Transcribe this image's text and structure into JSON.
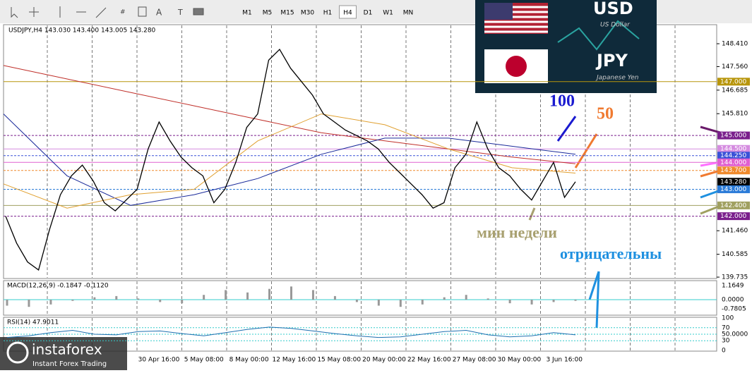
{
  "toolbar": {
    "periods": [
      "M1",
      "M5",
      "M15",
      "M30",
      "H1",
      "H4",
      "D1",
      "W1",
      "MN"
    ],
    "active": "H4"
  },
  "chart": {
    "header": "USDJPY,H4  143.030 143.400 143.005 143.280",
    "price_ticks": [
      "148.410",
      "147.560",
      "146.685",
      "145.810",
      "141.460",
      "140.585",
      "139.735"
    ],
    "levels": [
      {
        "label": "147.000",
        "color": "#b8960c"
      },
      {
        "label": "145.000",
        "color": "#7a1f8c"
      },
      {
        "label": "144.500",
        "color": "#d58ce0"
      },
      {
        "label": "144.250",
        "color": "#3a52d8"
      },
      {
        "label": "144.000",
        "color": "#e060d0"
      },
      {
        "label": "143.700",
        "color": "#f08a2c"
      },
      {
        "label": "143.280",
        "color": "#000000"
      },
      {
        "label": "143.000",
        "color": "#2b7bd8"
      },
      {
        "label": "142.400",
        "color": "#a0a060"
      },
      {
        "label": "142.000",
        "color": "#7a1f8c"
      }
    ],
    "closes": [
      142.0,
      141.0,
      140.3,
      140.0,
      141.5,
      142.8,
      143.5,
      143.9,
      143.3,
      142.5,
      142.2,
      142.6,
      143.0,
      144.5,
      145.5,
      144.8,
      144.2,
      143.8,
      143.5,
      142.5,
      143.0,
      144.0,
      145.3,
      145.8,
      147.8,
      148.2,
      147.5,
      147.0,
      146.5,
      145.8,
      145.5,
      145.2,
      145.0,
      144.8,
      144.5,
      144.0,
      143.6,
      143.2,
      142.8,
      142.3,
      142.5,
      143.8,
      144.3,
      145.5,
      144.5,
      143.8,
      143.5,
      143.0,
      142.6,
      143.3,
      144.0,
      142.7,
      143.28
    ],
    "ma200": [
      147.6,
      147.1,
      146.6,
      146.1,
      145.6,
      145.1,
      144.8,
      144.5,
      144.2,
      143.95
    ],
    "ma100": [
      145.8,
      143.5,
      142.4,
      142.8,
      143.4,
      144.3,
      144.9,
      144.9,
      144.6,
      144.3
    ],
    "ma50": [
      143.2,
      142.3,
      142.8,
      143.0,
      144.8,
      145.8,
      145.4,
      144.5,
      143.8,
      143.6
    ],
    "time_labels": [
      "30 Apr 16:00",
      "5 May 08:00",
      "8 May 00:00",
      "12 May 16:00",
      "15 May 08:00",
      "20 May 00:00",
      "22 May 16:00",
      "27 May 08:00",
      "30 May 00:00",
      "3 Jun 16:00"
    ]
  },
  "macd": {
    "label": "MACD(12,26,9) -0.1847 -0.1120",
    "ticks": [
      "1.1649",
      "0.0000",
      "-0.7805"
    ],
    "histogram": [
      -0.5,
      -0.6,
      -0.4,
      -0.1,
      0.2,
      0.3,
      0.1,
      -0.2,
      -0.3,
      0.4,
      0.8,
      0.6,
      0.9,
      1.1,
      0.8,
      0.3,
      -0.2,
      -0.5,
      -0.6,
      -0.4,
      0.2,
      0.4,
      0.1,
      -0.3,
      -0.4,
      -0.2,
      -0.1
    ]
  },
  "rsi": {
    "label": "RSI(14) 47.9011",
    "ticks": [
      "100",
      "70",
      "50.0000",
      "30",
      "0"
    ],
    "values": [
      40,
      45,
      55,
      62,
      50,
      48,
      58,
      60,
      52,
      45,
      55,
      65,
      72,
      68,
      60,
      52,
      45,
      40,
      42,
      50,
      58,
      62,
      48,
      42,
      45,
      55,
      48
    ]
  },
  "banner": {
    "base": "USD",
    "base_name": "US Dollar",
    "quote": "JPY",
    "quote_name": "Japanese Yen"
  },
  "annotations": {
    "ma100": "100",
    "ma50": "50",
    "weekly_low": "мин недели",
    "negative": "отрицательны"
  },
  "logo": {
    "name": "instaforex",
    "tagline": "Instant Forex Trading"
  }
}
